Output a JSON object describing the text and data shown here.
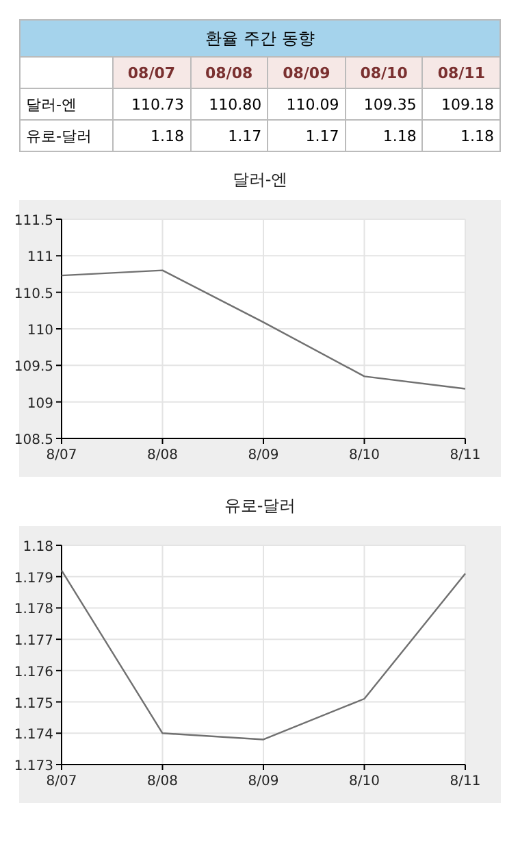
{
  "chart_data": [
    {
      "type": "other",
      "title": "환율 주간 동향",
      "categories": [
        "08/07",
        "08/08",
        "08/09",
        "08/10",
        "08/11"
      ],
      "data_labels": true,
      "series": [
        {
          "name": "달러-엔",
          "values": [
            110.73,
            110.8,
            110.09,
            109.35,
            109.18
          ],
          "value_labels": [
            "110.73",
            "110.80",
            "110.09",
            "109.35",
            "109.18"
          ]
        },
        {
          "name": "유로-달러",
          "values": [
            1.18,
            1.17,
            1.17,
            1.18,
            1.18
          ],
          "value_labels": [
            "1.18",
            "1.17",
            "1.17",
            "1.18",
            "1.18"
          ]
        }
      ]
    },
    {
      "type": "line",
      "title": "달러-엔",
      "categories": [
        "8/07",
        "8/08",
        "8/09",
        "8/10",
        "8/11"
      ],
      "values": [
        110.73,
        110.8,
        110.09,
        109.35,
        109.18
      ],
      "color": "#707070",
      "ylim": [
        108.5,
        111.5
      ],
      "yticks": [
        108.5,
        109,
        109.5,
        110,
        110.5,
        111,
        111.5
      ],
      "grid": true
    },
    {
      "type": "line",
      "title": "유로-달러",
      "categories": [
        "8/07",
        "8/08",
        "8/09",
        "8/10",
        "8/11"
      ],
      "values": [
        1.1792,
        1.174,
        1.1738,
        1.1751,
        1.1791
      ],
      "color": "#707070",
      "ylim": [
        1.173,
        1.18
      ],
      "yticks": [
        1.173,
        1.174,
        1.175,
        1.176,
        1.177,
        1.178,
        1.179,
        1.18
      ],
      "grid": true
    }
  ]
}
